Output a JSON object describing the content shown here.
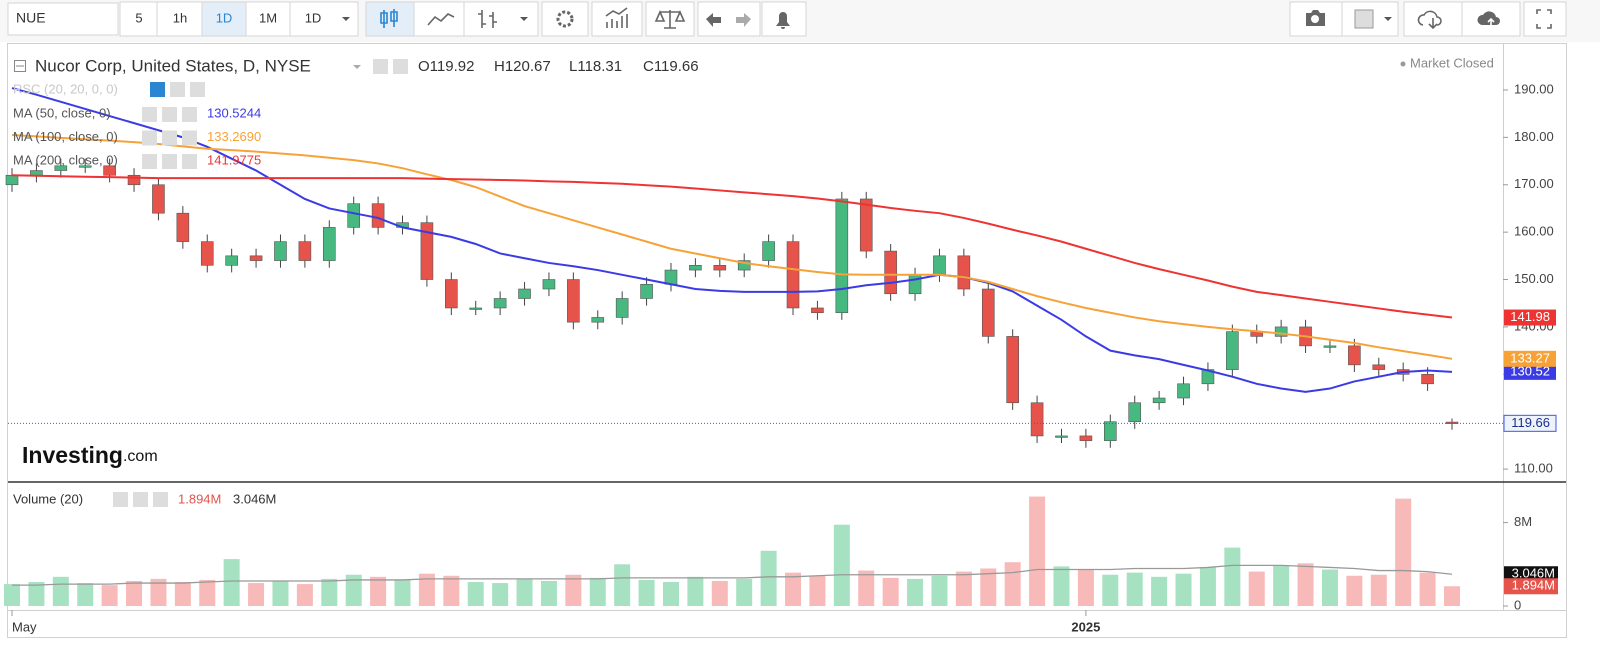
{
  "toolbar": {
    "symbol": "NUE",
    "intervals": [
      "5",
      "1h",
      "1D",
      "1M"
    ],
    "interval_select": "1D"
  },
  "header": {
    "title": "Nucor Corp, United States, D, NYSE",
    "ohlc_labels": [
      "O119.92",
      "H120.67",
      "L118.31",
      "C119.66"
    ],
    "status": "Market Closed",
    "logo": "Investing",
    "logo_suffix": ".com"
  },
  "chart_data": [
    {
      "type": "candlestick",
      "categories": [
        "May",
        null,
        null,
        null,
        null,
        null,
        null,
        null,
        null,
        null,
        null,
        null,
        null,
        null,
        null,
        null,
        null,
        null,
        null,
        null,
        null,
        null,
        null,
        null,
        null,
        null,
        null,
        null,
        null,
        null,
        null,
        null,
        null,
        null,
        null,
        null,
        null,
        null,
        null,
        null,
        null,
        null,
        null,
        null,
        "2025",
        null,
        null,
        null,
        null,
        null,
        null,
        null,
        null,
        null,
        null,
        null,
        null,
        null,
        null,
        null
      ],
      "open": [
        170,
        172,
        173,
        174,
        174,
        172,
        170,
        164,
        158,
        153,
        155,
        154,
        158,
        154,
        161,
        166,
        161,
        162,
        150,
        144,
        144,
        146,
        148,
        150,
        141,
        142,
        146,
        149,
        152,
        153,
        152,
        154,
        158,
        144,
        143,
        167,
        156,
        147,
        151,
        155,
        148,
        138,
        124,
        117,
        117,
        116,
        120,
        124,
        125,
        128,
        131,
        139,
        138,
        140,
        136,
        136,
        132,
        131,
        130,
        119.92
      ],
      "high": [
        173.5,
        174.5,
        175.5,
        175.5,
        175.5,
        173.5,
        171.5,
        165.5,
        159.5,
        156.5,
        156.5,
        159.5,
        159.5,
        162.5,
        167.5,
        167.5,
        163.5,
        163.5,
        151.5,
        145.5,
        147.5,
        149.5,
        151.5,
        151.5,
        143.5,
        147.5,
        150.5,
        153.5,
        154.5,
        154.5,
        155.5,
        159.5,
        159.5,
        145.5,
        168.5,
        168.5,
        157.5,
        152.5,
        156.5,
        156.5,
        149.5,
        139.5,
        125.5,
        118.5,
        118.5,
        121.5,
        125.5,
        126.5,
        129.5,
        132.5,
        140.5,
        140.5,
        141.5,
        141.5,
        137.5,
        137.5,
        133.5,
        132.5,
        131.5,
        120.67
      ],
      "low": [
        168.5,
        170.5,
        171.5,
        172.5,
        170.5,
        168.5,
        162.5,
        156.5,
        151.5,
        151.5,
        152.5,
        152.5,
        152.5,
        152.5,
        159.5,
        159.5,
        159.5,
        148.5,
        142.5,
        142.5,
        142.5,
        144.5,
        146.5,
        139.5,
        139.5,
        140.5,
        144.5,
        147.5,
        150.5,
        150.5,
        150.5,
        152.5,
        142.5,
        141.5,
        141.5,
        154.5,
        145.5,
        145.5,
        149.5,
        146.5,
        136.5,
        122.5,
        115.5,
        115.5,
        114.5,
        114.5,
        118.5,
        122.5,
        123.5,
        126.5,
        129.5,
        136.5,
        136.5,
        134.5,
        134.5,
        130.5,
        129.5,
        128.5,
        126.5,
        118.31
      ],
      "close": [
        172,
        173,
        174,
        174,
        172,
        170,
        164,
        158,
        153,
        155,
        154,
        158,
        154,
        161,
        166,
        161,
        162,
        150,
        144,
        144,
        146,
        148,
        150,
        141,
        142,
        146,
        149,
        152,
        153,
        152,
        154,
        158,
        144,
        143,
        167,
        156,
        147,
        151,
        155,
        148,
        138,
        124,
        117,
        117,
        116,
        120,
        124,
        125,
        128,
        131,
        139,
        138,
        140,
        136,
        136,
        132,
        131,
        130,
        128,
        119.66
      ],
      "up_color": "#47b87f",
      "down_color": "#e5534b",
      "ylim": [
        107.7,
        199.7
      ],
      "yticks": [
        {
          "value": 110,
          "label": "110.00"
        },
        {
          "value": 120,
          "label": "120.00"
        },
        {
          "value": 130,
          "label": "130.00"
        },
        {
          "value": 140,
          "label": "140.00"
        },
        {
          "value": 150,
          "label": "150.00"
        },
        {
          "value": 160,
          "label": "160.00"
        },
        {
          "value": 170,
          "label": "170.00"
        },
        {
          "value": 180,
          "label": "180.00"
        },
        {
          "value": 190,
          "label": "190.00"
        }
      ],
      "last_label": "119.66",
      "indicator_off": "RSC (20, 20, 0, 0)",
      "series": [
        {
          "name": "MA (50, close, 0)",
          "color": "#3b3be6",
          "legend_value": "130.5244",
          "badge": "130.52",
          "values": [
            190.4,
            189,
            187.5,
            186,
            184.5,
            183,
            181.5,
            180,
            178,
            175.5,
            173,
            170,
            167,
            165,
            164,
            163,
            161,
            160,
            159,
            157.5,
            155.5,
            154.5,
            153.5,
            152.8,
            152,
            151,
            150,
            149,
            148,
            147.6,
            147.4,
            147.4,
            147.4,
            147.5,
            148,
            148.8,
            149.3,
            150,
            151,
            150.5,
            149.3,
            147.5,
            144.5,
            141.5,
            138,
            135,
            134,
            133.2,
            132,
            130.8,
            129.5,
            128,
            127,
            126.3,
            127,
            128.5,
            129.5,
            130.5,
            130.8,
            130.52
          ]
        },
        {
          "name": "MA (100, close, 0)",
          "color": "#f7a237",
          "legend_value": "133.2690",
          "badge": "133.27",
          "values": [
            180.5,
            180.2,
            179.9,
            179.6,
            179.3,
            179,
            178.6,
            178.1,
            177.6,
            177.3,
            177,
            176.6,
            176.2,
            175.7,
            175.2,
            174.5,
            173.5,
            172.2,
            171,
            169.5,
            167.5,
            165.5,
            164,
            162.5,
            161,
            159.5,
            158,
            156.5,
            155.5,
            154.5,
            153.5,
            152.8,
            152.2,
            151.6,
            151.1,
            151,
            151,
            151,
            151,
            150.5,
            149.5,
            148,
            146.5,
            145.2,
            144,
            143,
            142,
            141.2,
            140.6,
            140,
            139.5,
            139.1,
            138.6,
            138,
            137.3,
            136.6,
            135.7,
            134.9,
            134.1,
            133.27
          ]
        },
        {
          "name": "MA (200, close, 0)",
          "color": "#ee3333",
          "legend_value": "141.9775",
          "badge": "141.98",
          "values": [
            172,
            171.9,
            171.8,
            171.7,
            171.6,
            171.5,
            171.4,
            171.4,
            171.4,
            171.4,
            171.4,
            171.4,
            171.4,
            171.4,
            171.4,
            171.4,
            171.4,
            171.3,
            171.2,
            171.1,
            171,
            170.9,
            170.7,
            170.6,
            170.4,
            170.2,
            169.9,
            169.6,
            169.2,
            168.8,
            168.4,
            168,
            167.6,
            167.1,
            166.5,
            165.8,
            165.1,
            164.5,
            164,
            163,
            161.8,
            160.5,
            159.3,
            158,
            156.5,
            155,
            153.5,
            152.2,
            151,
            149.8,
            148.5,
            147.4,
            146.7,
            146,
            145.3,
            144.6,
            143.9,
            143.2,
            142.6,
            141.98
          ]
        }
      ]
    },
    {
      "type": "bar",
      "title": "Volume (20)",
      "values": [
        2.1,
        2.3,
        2.8,
        2.2,
        2.0,
        2.4,
        2.6,
        2.3,
        2.5,
        4.5,
        2.2,
        2.4,
        2.1,
        2.6,
        3.0,
        2.8,
        2.5,
        3.1,
        2.9,
        2.3,
        2.2,
        2.6,
        2.4,
        3.0,
        2.7,
        4.0,
        2.5,
        2.3,
        2.8,
        2.4,
        2.6,
        5.3,
        3.2,
        2.9,
        7.8,
        3.4,
        2.7,
        2.6,
        2.9,
        3.3,
        3.6,
        4.2,
        10.5,
        3.8,
        3.5,
        3.0,
        3.2,
        2.8,
        3.1,
        3.7,
        5.6,
        3.3,
        3.9,
        4.1,
        3.5,
        2.9,
        3.0,
        10.3,
        3.2,
        1.894
      ],
      "value_label": "1.894M",
      "up_color": "#a6e1c2",
      "down_color": "#f8b9b9",
      "ylim": [
        0,
        11.8
      ],
      "yticks": [
        {
          "value": 8,
          "label": "8M"
        },
        0
      ],
      "ma": {
        "color": "#999999",
        "value_label": "3.046M",
        "values": [
          2.0,
          2.0,
          2.1,
          2.1,
          2.1,
          2.2,
          2.2,
          2.2,
          2.3,
          2.4,
          2.4,
          2.4,
          2.4,
          2.4,
          2.5,
          2.5,
          2.5,
          2.6,
          2.6,
          2.6,
          2.6,
          2.6,
          2.6,
          2.6,
          2.6,
          2.7,
          2.7,
          2.7,
          2.7,
          2.7,
          2.7,
          2.8,
          2.8,
          2.9,
          3.0,
          3.0,
          3.0,
          3.0,
          3.0,
          3.0,
          3.1,
          3.2,
          3.5,
          3.5,
          3.5,
          3.5,
          3.6,
          3.6,
          3.6,
          3.7,
          3.9,
          3.9,
          3.9,
          3.8,
          3.7,
          3.6,
          3.4,
          3.4,
          3.3,
          3.046
        ]
      }
    }
  ]
}
